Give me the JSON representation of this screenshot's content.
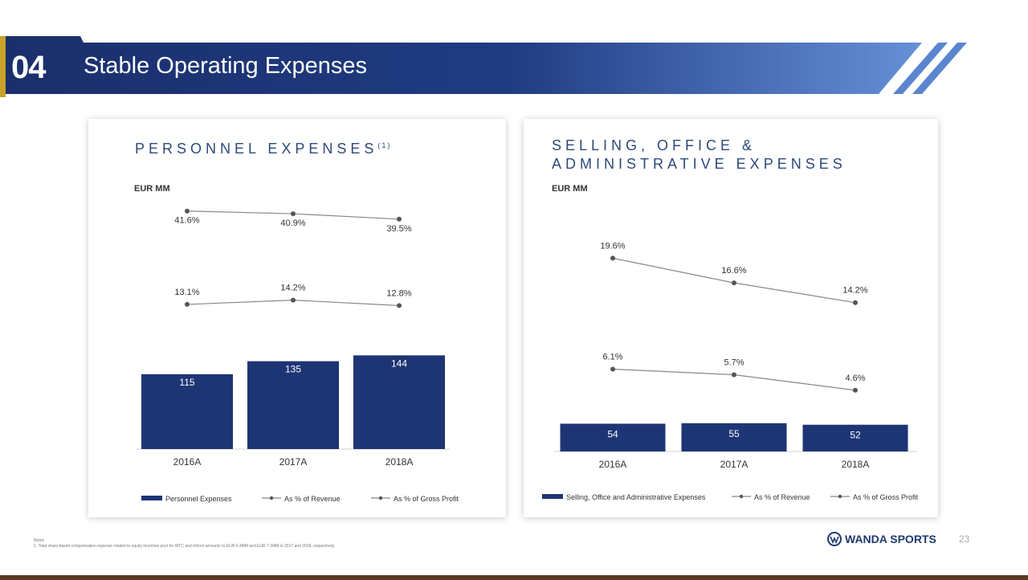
{
  "header": {
    "section_number": "04",
    "title": "Stable Operating Expenses"
  },
  "colors": {
    "navy": "#1e3575",
    "banner_light": "#5b85cf",
    "gold_accent": "#c9a227",
    "line_gray": "#888888"
  },
  "chart_data": [
    {
      "type": "bar",
      "title": "PERSONNEL EXPENSES",
      "title_sup": "(1)",
      "unit": "EUR MM",
      "categories": [
        "2016A",
        "2017A",
        "2018A"
      ],
      "series": [
        {
          "name": "Personnel Expenses",
          "kind": "bar",
          "values": [
            115,
            135,
            144
          ],
          "labels": [
            "115",
            "135",
            "144"
          ]
        },
        {
          "name": "As % of Revenue",
          "kind": "line",
          "values": [
            13.1,
            14.2,
            12.8
          ],
          "labels": [
            "13.1%",
            "14.2%",
            "12.8%"
          ]
        },
        {
          "name": "As % of Gross Profit",
          "kind": "line",
          "values": [
            41.6,
            40.9,
            39.5
          ],
          "labels": [
            "41.6%",
            "40.9%",
            "39.5%"
          ]
        }
      ],
      "legend_position": "bottom"
    },
    {
      "type": "bar",
      "title": "SELLING, OFFICE & ADMINISTRATIVE EXPENSES",
      "title_lines": [
        "SELLING, OFFICE &",
        "ADMINISTRATIVE EXPENSES"
      ],
      "unit": "EUR MM",
      "categories": [
        "2016A",
        "2017A",
        "2018A"
      ],
      "series": [
        {
          "name": "Selling, Office and Administrative Expenses",
          "kind": "bar",
          "values": [
            54,
            55,
            52
          ],
          "labels": [
            "54",
            "55",
            "52"
          ]
        },
        {
          "name": "As % of Revenue",
          "kind": "line",
          "values": [
            6.1,
            5.7,
            4.6
          ],
          "labels": [
            "6.1%",
            "5.7%",
            "4.6%"
          ]
        },
        {
          "name": "As % of Gross Profit",
          "kind": "line",
          "values": [
            19.6,
            16.6,
            14.2
          ],
          "labels": [
            "19.6%",
            "16.6%",
            "14.2%"
          ]
        }
      ],
      "legend_position": "bottom"
    }
  ],
  "footer": {
    "notes_label": "Notes",
    "note_1": "1. Total share-based compensation expense related to equity incentive pool for WTC and Infront amounts to EUR 6.4MM and EUR 7.1MM in 2017 and 2018, respectively",
    "logo_text": "WANDA SPORTS",
    "page_number": "23"
  }
}
